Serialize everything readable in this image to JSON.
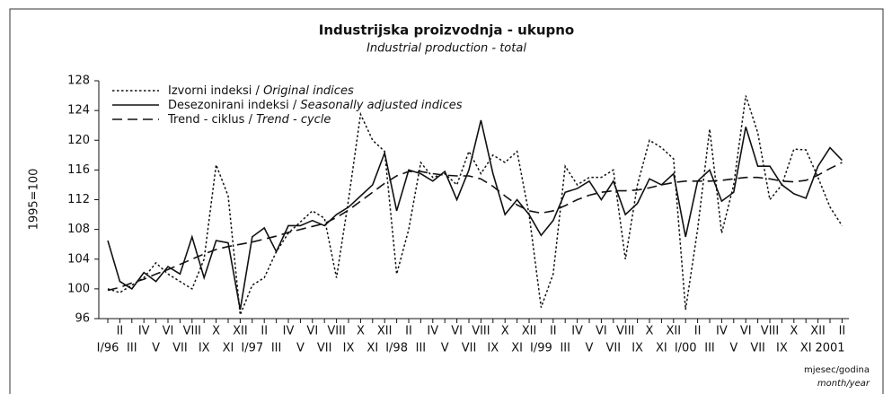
{
  "chart_data": {
    "type": "line",
    "title": "Industrijska proizvodnja - ukupno",
    "subtitle": "Industrial production - total",
    "y_label": "1995=100",
    "x_label": "mjesec/godina",
    "x_label_en": "month/year",
    "legend": "upper left",
    "categories": [
      "I/96",
      "II",
      "III",
      "IV",
      "V",
      "VI",
      "VII",
      "VIII",
      "IX",
      "X",
      "XI",
      "XII",
      "I/97",
      "II",
      "III",
      "IV",
      "V",
      "VI",
      "VII",
      "VIII",
      "IX",
      "X",
      "XI",
      "XII",
      "I/98",
      "II",
      "III",
      "IV",
      "V",
      "VI",
      "VII",
      "VIII",
      "IX",
      "X",
      "XI",
      "XII",
      "I/99",
      "II",
      "III",
      "IV",
      "V",
      "VI",
      "VII",
      "VIII",
      "IX",
      "X",
      "XI",
      "XII",
      "I/00",
      "II",
      "III",
      "IV",
      "V",
      "VI",
      "VII",
      "VIII",
      "IX",
      "X",
      "XI",
      "XII",
      "2001",
      "II"
    ],
    "ylim": [
      96,
      128
    ],
    "yticks": [
      96,
      100,
      104,
      108,
      112,
      116,
      120,
      124,
      128
    ],
    "series": [
      {
        "name": "Izvorni indeksi / Original indices",
        "color": "#111111",
        "dash": "dotted",
        "values": [
          100,
          99.5,
          100.5,
          101.5,
          103.5,
          102,
          101,
          100,
          104,
          116.7,
          112.5,
          96.5,
          100.5,
          101.5,
          105,
          107.5,
          109,
          110.5,
          109.5,
          101.5,
          112,
          123.5,
          120,
          118.5,
          102,
          108,
          117,
          115,
          115.5,
          114,
          118.5,
          115.5,
          118,
          117,
          118.5,
          110,
          97.5,
          102,
          116.5,
          114,
          115,
          115,
          116,
          104,
          114,
          120,
          119,
          117.5,
          97.2,
          108,
          121.5,
          107.5,
          114,
          126,
          121,
          112,
          114,
          118.8,
          118.7,
          115,
          111,
          108.5
        ]
      },
      {
        "name": "Desezonirani indeksi / Seasonally adjusted indices",
        "color": "#111111",
        "dash": "solid",
        "values": [
          106.5,
          101,
          100,
          102.2,
          101,
          103,
          102,
          107,
          101.5,
          106.5,
          106.2,
          97.2,
          107,
          108.2,
          105,
          108.5,
          108.5,
          109.2,
          108.5,
          110,
          111,
          112.5,
          114,
          118.3,
          110.5,
          116,
          115.5,
          114.5,
          115.8,
          112,
          116,
          122.7,
          115.5,
          110,
          112,
          110,
          107.2,
          109.2,
          113,
          113.5,
          114.5,
          112,
          114.5,
          110,
          111.5,
          114.8,
          114,
          115.5,
          107,
          114.5,
          116,
          111.8,
          113,
          121.8,
          116.5,
          116.5,
          114,
          112.8,
          112.2,
          116.5,
          119,
          117.3
        ]
      },
      {
        "name": "Trend - ciklus / Trend - cycle",
        "color": "#111111",
        "dash": "dashed",
        "values": [
          99.8,
          100.2,
          100.8,
          101.3,
          102,
          102.6,
          103.3,
          104,
          104.7,
          105.3,
          105.7,
          106,
          106.3,
          106.7,
          107.1,
          107.6,
          108,
          108.4,
          108.8,
          109.6,
          110.6,
          111.8,
          113,
          114.2,
          115.2,
          115.8,
          115.8,
          115.5,
          115.3,
          115.2,
          115.2,
          114.8,
          113.8,
          112.5,
          111.3,
          110.5,
          110.2,
          110.5,
          111.2,
          112,
          112.6,
          113,
          113.2,
          113.2,
          113.3,
          113.6,
          114,
          114.3,
          114.5,
          114.5,
          114.5,
          114.6,
          114.8,
          115,
          115,
          114.8,
          114.5,
          114.4,
          114.6,
          115.3,
          116.2,
          117
        ]
      }
    ]
  }
}
